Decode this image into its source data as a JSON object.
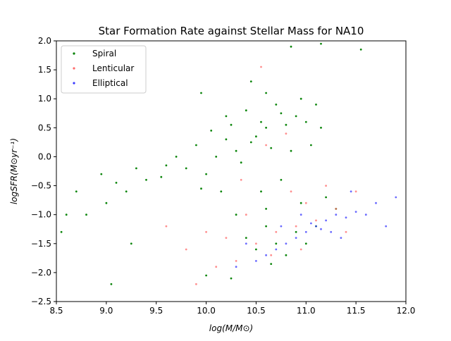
{
  "chart_data": {
    "type": "scatter",
    "title": "Star Formation Rate against Stellar Mass for NA10",
    "xlabel": "log(M/M⊙)",
    "ylabel": "logSFR(M⊙yr⁻¹)",
    "xlim": [
      8.5,
      12.0
    ],
    "ylim": [
      -2.5,
      2.0
    ],
    "xticks": [
      8.5,
      9.0,
      9.5,
      10.0,
      10.5,
      11.0,
      11.5,
      12.0
    ],
    "xtick_labels": [
      "8.5",
      "9.0",
      "9.5",
      "10.0",
      "10.5",
      "11.0",
      "11.5",
      "12.0"
    ],
    "yticks": [
      -2.5,
      -2.0,
      -1.5,
      -1.0,
      -0.5,
      0.0,
      0.5,
      1.0,
      1.5,
      2.0
    ],
    "ytick_labels": [
      "−2.5",
      "−2.0",
      "−1.5",
      "−1.0",
      "−0.5",
      "0.0",
      "0.5",
      "1.0",
      "1.5",
      "2.0"
    ],
    "grid": false,
    "legend_position": "top-left",
    "series": [
      {
        "name": "Spiral",
        "color": "#008000",
        "points": [
          [
            10.45,
            0.25
          ],
          [
            10.6,
            0.5
          ],
          [
            10.8,
            0.55
          ],
          [
            10.3,
            0.1
          ],
          [
            10.1,
            0.0
          ],
          [
            9.8,
            -0.2
          ],
          [
            9.6,
            -0.15
          ],
          [
            9.4,
            -0.4
          ],
          [
            9.2,
            -0.6
          ],
          [
            9.0,
            -0.8
          ],
          [
            8.8,
            -1.0
          ],
          [
            10.9,
            0.7
          ],
          [
            11.0,
            0.6
          ],
          [
            10.7,
            0.9
          ],
          [
            10.5,
            0.35
          ],
          [
            10.2,
            0.3
          ],
          [
            10.0,
            -0.3
          ],
          [
            10.35,
            -0.1
          ],
          [
            10.65,
            0.15
          ],
          [
            10.85,
            0.1
          ],
          [
            11.05,
            0.2
          ],
          [
            10.55,
            0.6
          ],
          [
            10.75,
            0.75
          ],
          [
            10.95,
            1.0
          ],
          [
            10.6,
            1.1
          ],
          [
            10.4,
            0.8
          ],
          [
            10.25,
            0.55
          ],
          [
            10.05,
            0.45
          ],
          [
            9.9,
            0.2
          ],
          [
            9.7,
            0.0
          ],
          [
            9.55,
            -0.35
          ],
          [
            9.3,
            -0.2
          ],
          [
            9.1,
            -0.45
          ],
          [
            8.95,
            -0.3
          ],
          [
            8.7,
            -0.6
          ],
          [
            8.6,
            -1.0
          ],
          [
            10.5,
            -1.6
          ],
          [
            10.7,
            -1.5
          ],
          [
            10.9,
            -1.3
          ],
          [
            11.1,
            -1.2
          ],
          [
            10.6,
            -1.2
          ],
          [
            10.4,
            -1.4
          ],
          [
            10.8,
            -1.7
          ],
          [
            10.3,
            -1.0
          ],
          [
            11.2,
            -0.7
          ],
          [
            11.3,
            -0.9
          ],
          [
            10.55,
            -0.6
          ],
          [
            10.75,
            -0.4
          ],
          [
            11.15,
            0.5
          ],
          [
            10.2,
            0.7
          ],
          [
            10.15,
            -0.6
          ],
          [
            9.95,
            -0.55
          ],
          [
            10.45,
            1.3
          ],
          [
            11.1,
            0.9
          ],
          [
            10.85,
            1.9
          ],
          [
            11.15,
            1.95
          ],
          [
            11.55,
            1.85
          ],
          [
            9.25,
            -1.5
          ],
          [
            8.55,
            -1.3
          ],
          [
            9.05,
            -2.2
          ],
          [
            10.0,
            -2.05
          ],
          [
            9.95,
            1.1
          ],
          [
            10.6,
            -0.9
          ],
          [
            10.95,
            -0.8
          ],
          [
            11.0,
            -1.5
          ],
          [
            10.65,
            -1.85
          ],
          [
            10.25,
            -2.1
          ]
        ]
      },
      {
        "name": "Lenticular",
        "color": "#ff6a6a",
        "points": [
          [
            10.5,
            -1.5
          ],
          [
            10.7,
            -1.3
          ],
          [
            10.9,
            -1.2
          ],
          [
            11.1,
            -1.1
          ],
          [
            10.3,
            -1.8
          ],
          [
            10.1,
            -1.9
          ],
          [
            9.8,
            -1.6
          ],
          [
            9.6,
            -1.2
          ],
          [
            10.8,
            0.4
          ],
          [
            10.6,
            0.2
          ],
          [
            11.0,
            -0.8
          ],
          [
            11.3,
            -0.9
          ],
          [
            10.4,
            -1.0
          ],
          [
            10.2,
            -1.4
          ],
          [
            10.95,
            -1.6
          ],
          [
            10.65,
            -1.7
          ],
          [
            10.0,
            -1.3
          ],
          [
            10.85,
            -0.6
          ],
          [
            11.2,
            -0.5
          ],
          [
            10.55,
            1.55
          ],
          [
            11.5,
            -0.6
          ],
          [
            10.35,
            -0.4
          ],
          [
            9.9,
            -2.2
          ],
          [
            11.4,
            -1.3
          ]
        ]
      },
      {
        "name": "Elliptical",
        "color": "#3a3aff",
        "points": [
          [
            11.1,
            -1.2
          ],
          [
            11.2,
            -1.1
          ],
          [
            11.0,
            -1.3
          ],
          [
            10.9,
            -1.4
          ],
          [
            11.3,
            -1.0
          ],
          [
            11.4,
            -1.05
          ],
          [
            10.8,
            -1.5
          ],
          [
            10.7,
            -1.6
          ],
          [
            11.15,
            -1.25
          ],
          [
            11.05,
            -1.15
          ],
          [
            11.25,
            -1.3
          ],
          [
            10.6,
            -1.7
          ],
          [
            10.5,
            -1.8
          ],
          [
            11.5,
            -0.95
          ],
          [
            11.6,
            -1.0
          ],
          [
            11.7,
            -0.8
          ],
          [
            11.9,
            -0.7
          ],
          [
            10.95,
            -1.0
          ],
          [
            11.35,
            -1.4
          ],
          [
            10.4,
            -1.5
          ],
          [
            10.3,
            -1.9
          ],
          [
            11.8,
            -1.2
          ],
          [
            11.45,
            -0.6
          ],
          [
            10.75,
            -1.2
          ]
        ]
      }
    ]
  }
}
